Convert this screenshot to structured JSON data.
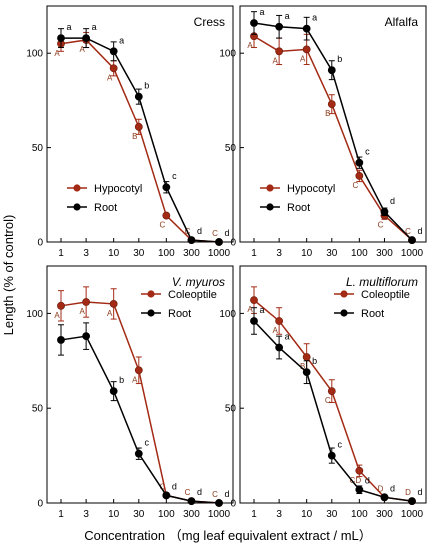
{
  "labels": {
    "ylabel": "Length  (% of control)",
    "xlabel": "Concentration （mg leaf equivalent extract / mL）"
  },
  "colors": {
    "series_red": "#a32a14",
    "series_black": "#000000",
    "label_brown": "#8b3a1a"
  },
  "chart_data": [
    {
      "type": "line",
      "title": "Cress",
      "title_italic": false,
      "x": [
        1,
        3,
        10,
        30,
        100,
        300,
        1000
      ],
      "x_ticks": [
        "1",
        "3",
        "10",
        "30",
        "100",
        "300",
        "1000"
      ],
      "y_ticks": [
        "0",
        "50",
        "100"
      ],
      "x_scale": "log",
      "ylim": [
        0,
        125
      ],
      "legend": "bottom-left",
      "grid": false,
      "series": [
        {
          "name": "Hypocotyl",
          "color": "#a32a14",
          "values": [
            105,
            107,
            92,
            61,
            14,
            1,
            0
          ],
          "err": [
            4,
            4,
            4,
            4,
            1,
            0.5,
            0.5
          ],
          "labels": [
            "A",
            "A",
            "A",
            "B",
            "C",
            "C",
            "C"
          ]
        },
        {
          "name": "Root",
          "color": "#000000",
          "values": [
            108,
            108,
            101,
            77,
            29,
            1,
            0
          ],
          "err": [
            5,
            5,
            5,
            4,
            3,
            0.5,
            0.5
          ],
          "labels": [
            "a",
            "a",
            "a",
            "b",
            "c",
            "d",
            "d"
          ]
        }
      ]
    },
    {
      "type": "line",
      "title": "Alfalfa",
      "title_italic": false,
      "x": [
        1,
        3,
        10,
        30,
        100,
        300,
        1000
      ],
      "x_ticks": [
        "1",
        "3",
        "10",
        "30",
        "100",
        "300",
        "1000"
      ],
      "y_ticks": [
        "0",
        "50",
        "100"
      ],
      "x_scale": "log",
      "ylim": [
        0,
        125
      ],
      "legend": "bottom-left",
      "grid": false,
      "series": [
        {
          "name": "Hypocotyl",
          "color": "#a32a14",
          "values": [
            109,
            101,
            102,
            73,
            35,
            14,
            1
          ],
          "err": [
            6,
            7,
            8,
            5,
            3,
            2,
            0.5
          ],
          "labels": [
            "A",
            "A",
            "A",
            "B",
            "C",
            "C",
            "C"
          ]
        },
        {
          "name": "Root",
          "color": "#000000",
          "values": [
            116,
            114,
            113,
            91,
            42,
            16,
            1
          ],
          "err": [
            6,
            6,
            6,
            5,
            3,
            2,
            0.5
          ],
          "labels": [
            "a",
            "a",
            "a",
            "b",
            "c",
            "d",
            "d"
          ]
        }
      ]
    },
    {
      "type": "line",
      "title": "V. myuros",
      "title_italic": true,
      "x": [
        1,
        3,
        10,
        30,
        100,
        300,
        1000
      ],
      "x_ticks": [
        "1",
        "3",
        "10",
        "30",
        "100",
        "300",
        "1000"
      ],
      "y_ticks": [
        "0",
        "50",
        "100"
      ],
      "x_scale": "log",
      "ylim": [
        0,
        125
      ],
      "legend": "top-right",
      "grid": false,
      "series": [
        {
          "name": "Coleoptile",
          "color": "#a32a14",
          "values": [
            104,
            106,
            105,
            70,
            4,
            1,
            0
          ],
          "err": [
            8,
            8,
            8,
            7,
            1,
            1,
            1
          ],
          "labels": [
            "A",
            "A",
            "A",
            "A",
            "C",
            "C",
            "C"
          ]
        },
        {
          "name": "Root",
          "color": "#000000",
          "values": [
            86,
            88,
            59,
            26,
            4,
            1,
            0
          ],
          "err": [
            8,
            7,
            5,
            3,
            1,
            1,
            1
          ],
          "labels": [
            "",
            "",
            "b",
            "c",
            "d",
            "d",
            "d"
          ]
        }
      ]
    },
    {
      "type": "line",
      "title": "L. multiflorum",
      "title_italic": true,
      "x": [
        1,
        3,
        10,
        30,
        100,
        300,
        1000
      ],
      "x_ticks": [
        "1",
        "3",
        "10",
        "30",
        "100",
        "300",
        "1000"
      ],
      "y_ticks": [
        "0",
        "50",
        "100"
      ],
      "x_scale": "log",
      "ylim": [
        0,
        125
      ],
      "legend": "top-right",
      "grid": false,
      "series": [
        {
          "name": "Coleoptile",
          "color": "#a32a14",
          "values": [
            107,
            96,
            77,
            59,
            17,
            3,
            1
          ],
          "err": [
            7,
            7,
            7,
            6,
            3,
            1,
            0.5
          ],
          "labels": [
            "A",
            "A",
            "B",
            "C",
            "CD",
            "D",
            "D"
          ]
        },
        {
          "name": "Root",
          "color": "#000000",
          "values": [
            96,
            82,
            69,
            25,
            7,
            3,
            1
          ],
          "err": [
            7,
            6,
            6,
            4,
            2,
            1,
            0.5
          ],
          "labels": [
            "a",
            "a",
            "b",
            "c",
            "d",
            "d",
            "d"
          ]
        }
      ]
    }
  ]
}
